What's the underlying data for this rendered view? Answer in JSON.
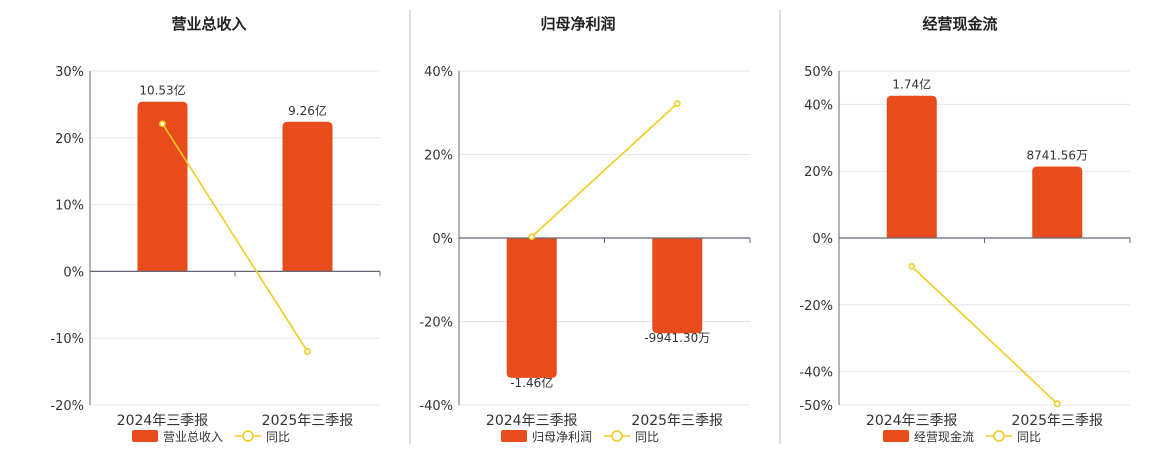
{
  "colors": {
    "bar": "#E84C1C",
    "line": "#EECC22",
    "grid": "#E6E6EE",
    "axis": "#666677",
    "divider": "#BBBBBB"
  },
  "chart_data": [
    {
      "type": "bar",
      "title": "营业总收入",
      "categories": [
        "2024年三季报",
        "2025年三季报"
      ],
      "series": [
        {
          "name": "营业总收入",
          "type": "bar",
          "values": [
            25.4,
            22.4
          ],
          "labels": [
            "10.53亿",
            "9.26亿"
          ]
        },
        {
          "name": "同比",
          "type": "line",
          "values": [
            22.1,
            -12.0
          ]
        }
      ],
      "ylim": [
        -20,
        30
      ],
      "yticks": [
        30,
        20,
        10,
        0,
        -10,
        -20
      ],
      "tick_labels": [
        "30%",
        "20%",
        "10%",
        "0%",
        "-10%",
        "-20%"
      ],
      "legend": [
        "营业总收入",
        "同比"
      ],
      "legend_position": "bottom",
      "grid": true
    },
    {
      "type": "bar",
      "title": "归母净利润",
      "categories": [
        "2024年三季报",
        "2025年三季报"
      ],
      "series": [
        {
          "name": "归母净利润",
          "type": "bar",
          "values": [
            -33.5,
            -22.8
          ],
          "labels": [
            "-1.46亿",
            "-9941.30万"
          ]
        },
        {
          "name": "同比",
          "type": "line",
          "values": [
            0.3,
            32.2
          ]
        }
      ],
      "ylim": [
        -40,
        40
      ],
      "yticks": [
        40,
        20,
        0,
        -20,
        -40
      ],
      "tick_labels": [
        "40%",
        "20%",
        "0%",
        "-20%",
        "-40%"
      ],
      "legend": [
        "归母净利润",
        "同比"
      ],
      "legend_position": "bottom",
      "grid": true
    },
    {
      "type": "bar",
      "title": "经营现金流",
      "categories": [
        "2024年三季报",
        "2025年三季报"
      ],
      "series": [
        {
          "name": "经营现金流",
          "type": "bar",
          "values": [
            42.6,
            21.4
          ],
          "labels": [
            "1.74亿",
            "8741.56万"
          ]
        },
        {
          "name": "同比",
          "type": "line",
          "values": [
            -8.5,
            -49.6
          ]
        }
      ],
      "ylim": [
        -50,
        50
      ],
      "yticks": [
        50,
        40,
        20,
        0,
        -20,
        -40,
        -50
      ],
      "tick_labels": [
        "50%",
        "40%",
        "20%",
        "0%",
        "-20%",
        "-40%",
        "-50%"
      ],
      "legend": [
        "经营现金流",
        "同比"
      ],
      "legend_position": "bottom",
      "grid": true
    }
  ]
}
